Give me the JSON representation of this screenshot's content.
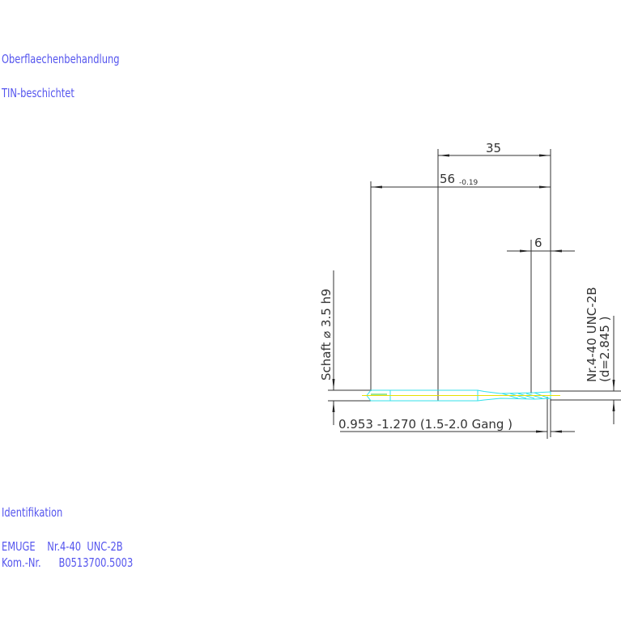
{
  "notes": {
    "surface_heading": "Oberflaechenbehandlung",
    "surface_value": "TIN-beschichtet",
    "ident_heading": "Identifikation",
    "ident_line1": "EMUGE    Nr.4-40  UNC-2B",
    "ident_line2": "Kom.-Nr.      B0513700.5003"
  },
  "drawing": {
    "dim_35": "35",
    "dim_56": "56",
    "dim_56_tol": "-0.19",
    "dim_6": "6",
    "shank_label": "Schaft  ⌀  3.5   h9",
    "thread_label": "Nr.4-40  UNC-2B",
    "thread_diameter": "(d=2.845 )",
    "chamfer_label": "0.953  -1.270  (1.5-2.0  Gang    )",
    "colors": {
      "text": "#5555ee",
      "lines": "#333333",
      "tool_outline": "#33e0e8",
      "axis": "#e8e000"
    }
  }
}
